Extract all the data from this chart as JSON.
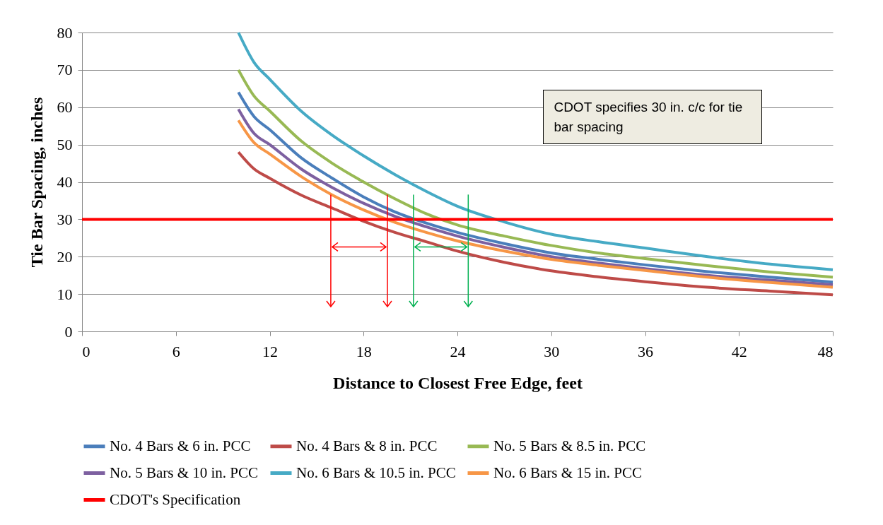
{
  "chart_data": {
    "type": "line",
    "xlabel": "Distance to Closest Free Edge, feet",
    "ylabel": "Tie Bar Spacing, inches",
    "x": [
      10,
      11,
      12,
      14,
      16,
      18,
      20,
      22,
      24,
      27,
      30,
      33,
      36,
      40,
      44,
      48
    ],
    "series": [
      {
        "name": "No. 4 Bars & 6 in. PCC",
        "color": "#4a7ebb",
        "values": [
          64,
          57.5,
          54,
          46.5,
          41,
          36,
          32,
          29,
          26.5,
          23.5,
          21,
          19.3,
          17.8,
          16,
          14.5,
          13.2
        ]
      },
      {
        "name": "No. 4 Bars & 8 in. PCC",
        "color": "#be4b48",
        "values": [
          48,
          43.5,
          41,
          36.5,
          33,
          29.5,
          26.5,
          24,
          21.5,
          18.5,
          16.2,
          14.6,
          13.3,
          11.8,
          10.8,
          9.8
        ]
      },
      {
        "name": "No. 5 Bars &  8.5 in. PCC",
        "color": "#98b954",
        "values": [
          70,
          63,
          59,
          51,
          45,
          40,
          35.5,
          31.5,
          28.5,
          25.5,
          23,
          21,
          19.5,
          17.6,
          15.9,
          14.5
        ]
      },
      {
        "name": "No. 5 Bars & 10 in. PCC",
        "color": "#7d60a0",
        "values": [
          59.5,
          53,
          50,
          43.5,
          38.5,
          34.3,
          30.8,
          28,
          25.5,
          22.5,
          20,
          18.3,
          16.8,
          15,
          13.7,
          12.5
        ]
      },
      {
        "name": "No. 6 Bars & 10.5 in. PCC",
        "color": "#46aac5",
        "values": [
          80,
          72,
          67.5,
          59,
          52.5,
          47,
          42,
          37.5,
          33.5,
          29.3,
          26,
          24,
          22.3,
          20,
          18,
          16.5
        ]
      },
      {
        "name": "No. 6 Bars & 15 in. PCC",
        "color": "#f79646",
        "values": [
          56.5,
          50.5,
          47.5,
          41.5,
          36.5,
          32.5,
          29.2,
          26.5,
          24.2,
          21.5,
          19.3,
          17.7,
          16.3,
          14.5,
          13.1,
          11.8
        ]
      }
    ],
    "ref_lines": [
      {
        "axis": "y",
        "value": 30,
        "label": "CDOT's Specification",
        "color": "#ff0000"
      }
    ],
    "annotations": [
      "CDOT specifies 30 in. c/c for tie bar spacing"
    ],
    "xlim": [
      0,
      48
    ],
    "xticks": [
      0,
      6,
      12,
      18,
      24,
      30,
      36,
      42,
      48
    ],
    "ylim": [
      0,
      80
    ],
    "yticks": [
      0,
      10,
      20,
      30,
      40,
      50,
      60,
      70,
      80
    ],
    "grid": "y",
    "legend": "bottom",
    "marker": "none",
    "line_style": "solid"
  }
}
